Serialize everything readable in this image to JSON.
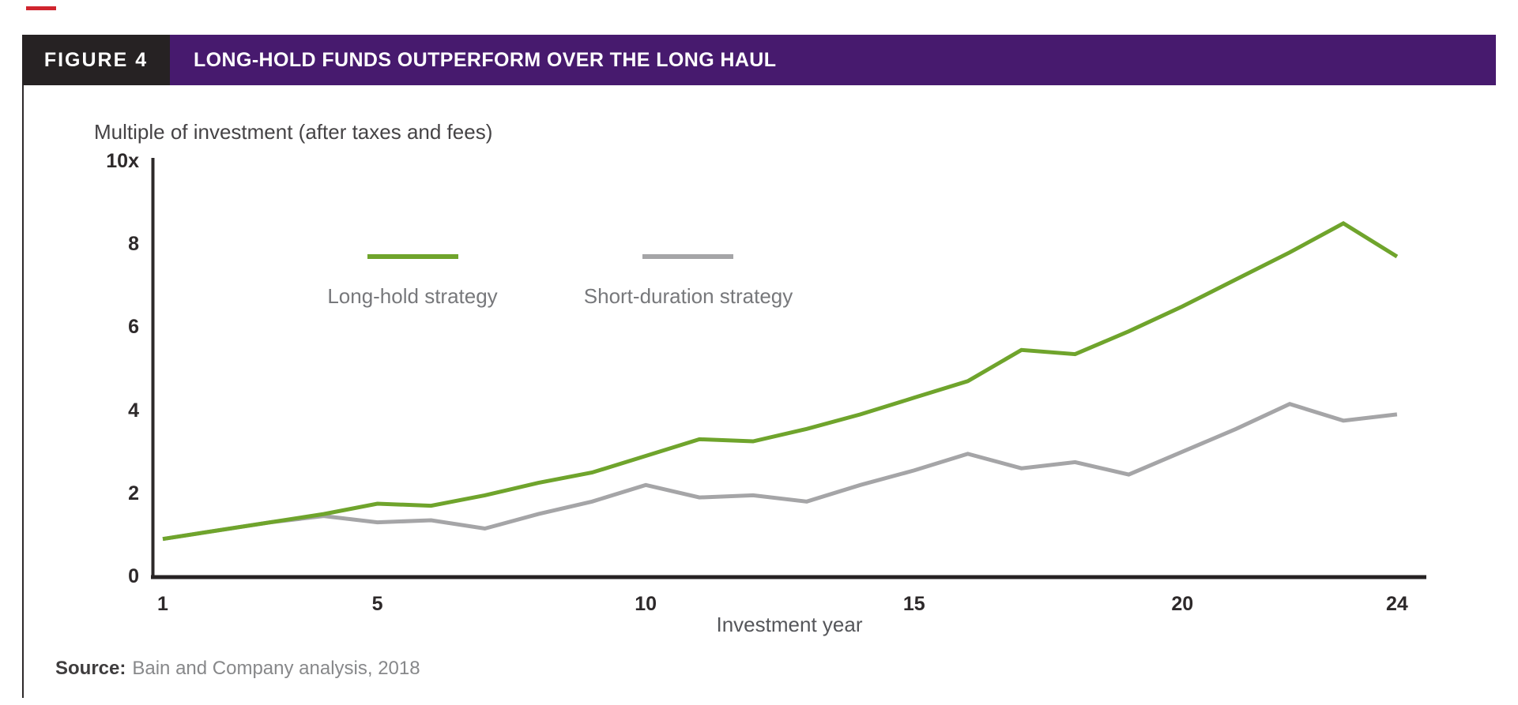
{
  "colors": {
    "red_accent": "#d0252e",
    "header_black": "#262223",
    "header_purple": "#471a6e",
    "long_hold_green": "#6fa42c",
    "short_duration_gray": "#a5a5a7"
  },
  "header": {
    "figure_label": "FIGURE 4",
    "title": "LONG-HOLD FUNDS OUTPERFORM OVER THE LONG HAUL"
  },
  "chart_data": {
    "type": "line",
    "title": "Multiple of investment (after taxes and fees)",
    "xlabel": "Investment year",
    "ylabel": "Multiple of investment (after taxes and fees)",
    "xlim": [
      1,
      24
    ],
    "ylim": [
      0,
      10
    ],
    "grid": false,
    "legend_position": "top-center-inside",
    "x": [
      1,
      2,
      3,
      4,
      5,
      6,
      7,
      8,
      9,
      10,
      11,
      12,
      13,
      14,
      15,
      16,
      17,
      18,
      19,
      20,
      21,
      22,
      23,
      24
    ],
    "x_ticks": [
      1,
      5,
      10,
      15,
      20,
      24
    ],
    "y_ticks": [
      {
        "value": 10,
        "label": "10x"
      },
      {
        "value": 8,
        "label": "8"
      },
      {
        "value": 6,
        "label": "6"
      },
      {
        "value": 4,
        "label": "4"
      },
      {
        "value": 2,
        "label": "2"
      },
      {
        "value": 0,
        "label": "0"
      }
    ],
    "series": [
      {
        "name": "Long-hold strategy",
        "color": "#6fa42c",
        "values": [
          0.9,
          1.1,
          1.3,
          1.5,
          1.75,
          1.7,
          1.95,
          2.25,
          2.5,
          2.9,
          3.3,
          3.25,
          3.55,
          3.9,
          4.3,
          4.7,
          5.45,
          5.35,
          5.9,
          6.5,
          7.15,
          7.8,
          8.5,
          7.7
        ]
      },
      {
        "name": "Short-duration strategy",
        "color": "#a5a5a7",
        "values": [
          0.9,
          1.1,
          1.3,
          1.45,
          1.3,
          1.35,
          1.15,
          1.5,
          1.8,
          2.2,
          1.9,
          1.95,
          1.8,
          2.2,
          2.55,
          2.95,
          2.6,
          2.75,
          2.45,
          3.0,
          3.55,
          4.15,
          3.75,
          3.9
        ]
      }
    ]
  },
  "source": {
    "label": "Source:",
    "text": "Bain and Company analysis, 2018"
  }
}
